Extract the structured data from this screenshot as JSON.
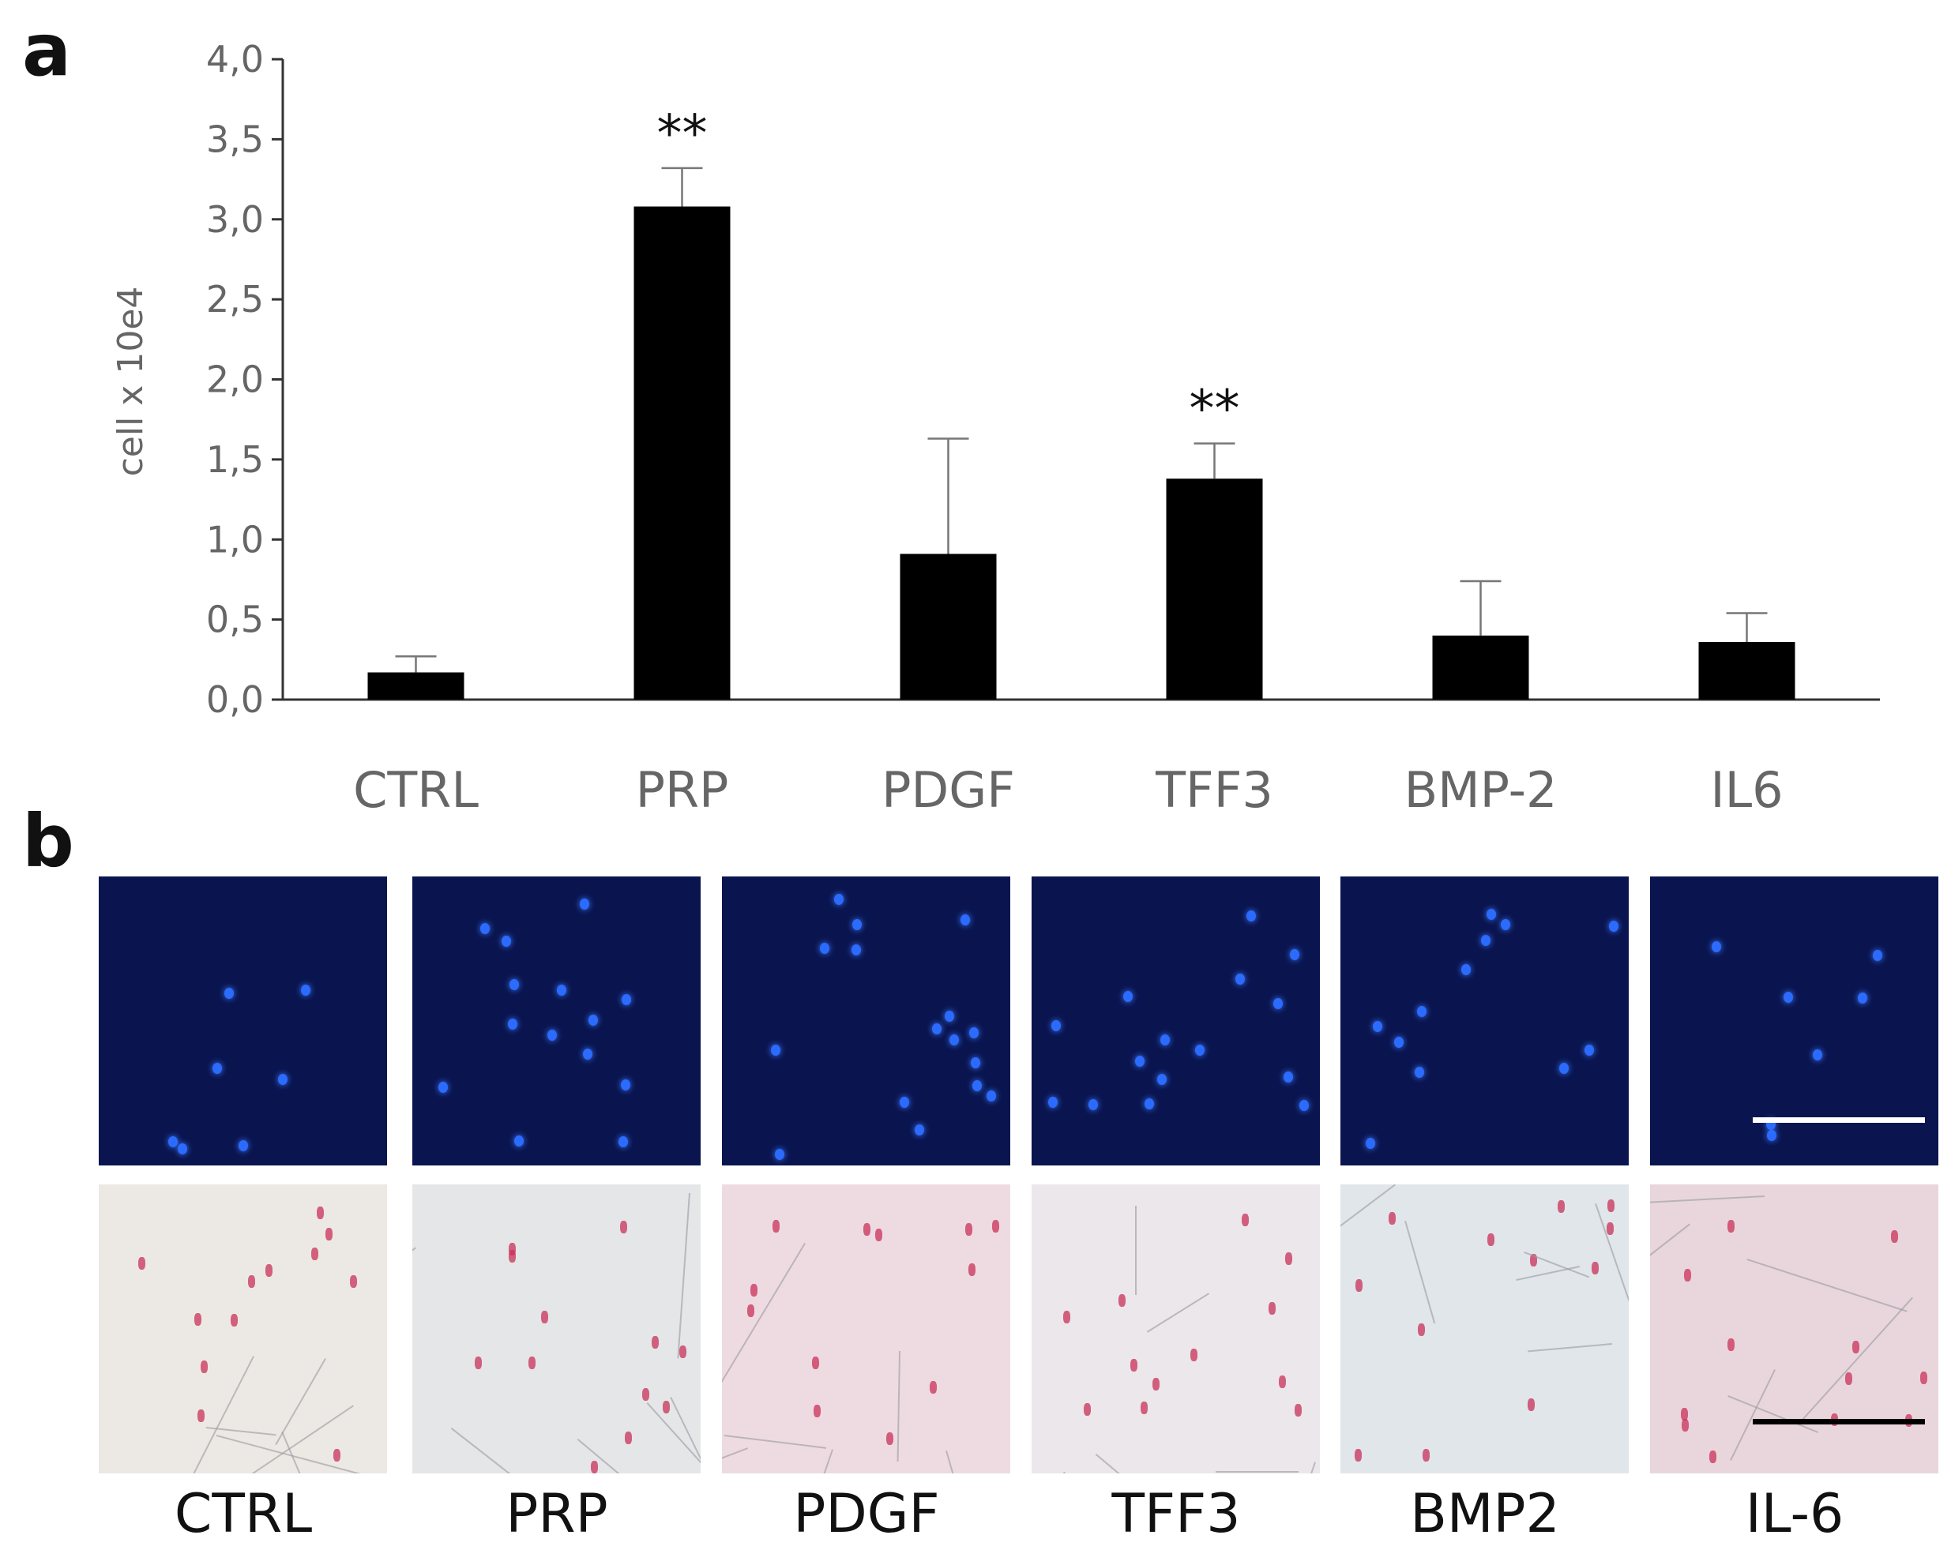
{
  "panels": {
    "a": "a",
    "b": "b"
  },
  "chart_data": {
    "type": "bar",
    "ylabel": "cell x 10e4",
    "ylim": [
      0,
      4.0
    ],
    "yticks": [
      0,
      0.5,
      1.0,
      1.5,
      2.0,
      2.5,
      3.0,
      3.5,
      4.0
    ],
    "ytick_labels": [
      "0,0",
      "0,5",
      "1,0",
      "1,5",
      "2,0",
      "2,5",
      "3,0",
      "3,5",
      "4,0"
    ],
    "categories": [
      "CTRL",
      "PRP",
      "PDGF",
      "TFF3",
      "BMP-2",
      "IL6"
    ],
    "values": [
      0.17,
      3.08,
      0.91,
      1.38,
      0.4,
      0.36
    ],
    "errors": [
      0.1,
      0.24,
      0.72,
      0.22,
      0.34,
      0.18
    ],
    "annotations": [
      "",
      "**",
      "",
      "**",
      "",
      ""
    ],
    "bar_color": "#000000",
    "grid": false
  },
  "micrographs": {
    "labels": [
      "CTRL",
      "PRP",
      "PDGF",
      "TFF3",
      "BMP2",
      "IL-6"
    ],
    "fluorescence_color": "#0a1550",
    "stain_color": "#e2e6ea",
    "scale_bar_top_color": "#ffffff",
    "scale_bar_bottom_color": "#000000"
  }
}
